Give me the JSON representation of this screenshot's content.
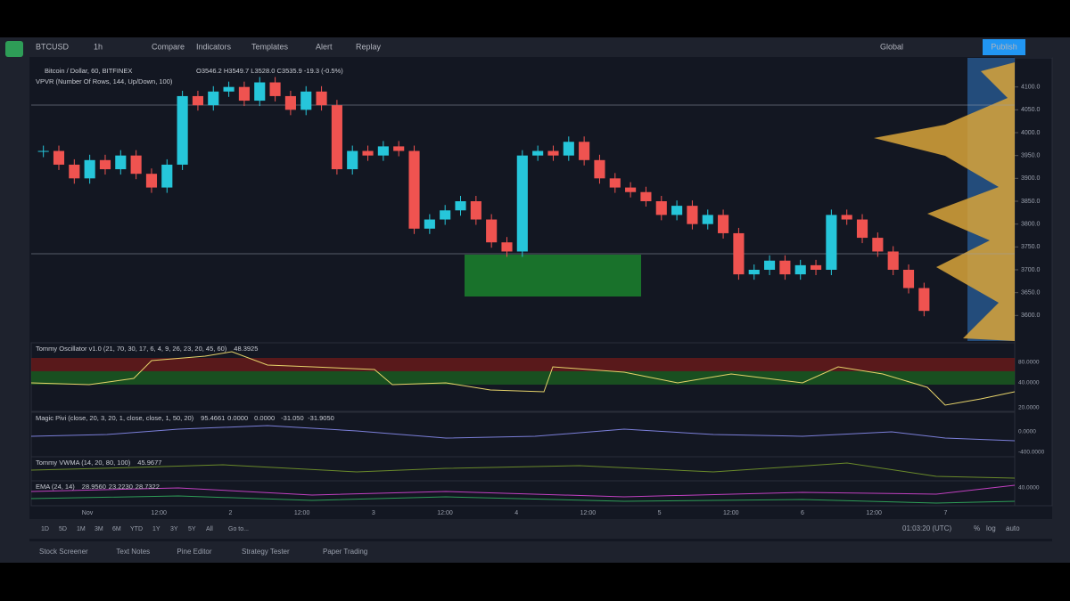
{
  "toolbar": {
    "symbol": "BTCUSD",
    "interval": "1h",
    "items": [
      "Compare",
      "Indicators",
      "Templates",
      "Alert",
      "Replay"
    ],
    "layout": "Global",
    "publish": "Publish"
  },
  "legend": {
    "title": "Bitcoin / Dollar, 60, BITFINEX",
    "ohlc": "O3546.2 H3549.7 L3528.0 C3535.9 -19.3 (-0.5%)",
    "vpvr": "VPVR (Number Of Rows, 144, Up/Down, 100)"
  },
  "price_pane": {
    "ylim": [
      3550,
      4150
    ],
    "yticks": [
      {
        "value": 4100,
        "label": "4100.0"
      },
      {
        "value": 4050,
        "label": "4050.0"
      },
      {
        "value": 4000,
        "label": "4000.0"
      },
      {
        "value": 3950,
        "label": "3950.0"
      },
      {
        "value": 3900,
        "label": "3900.0"
      },
      {
        "value": 3850,
        "label": "3850.0"
      },
      {
        "value": 3800,
        "label": "3800.0"
      },
      {
        "value": 3750,
        "label": "3750.0"
      },
      {
        "value": 3700,
        "label": "3700.0"
      },
      {
        "value": 3650,
        "label": "3650.0"
      },
      {
        "value": 3600,
        "label": "3600.0"
      }
    ],
    "closes": [
      3960,
      3930,
      3900,
      3940,
      3920,
      3950,
      3910,
      3880,
      3930,
      4080,
      4060,
      4090,
      4100,
      4070,
      4110,
      4080,
      4050,
      4090,
      4060,
      3920,
      3960,
      3950,
      3970,
      3960,
      3790,
      3810,
      3830,
      3850,
      3810,
      3760,
      3740,
      3950,
      3960,
      3950,
      3980,
      3940,
      3900,
      3880,
      3870,
      3850,
      3820,
      3840,
      3800,
      3820,
      3780,
      3690,
      3700,
      3720,
      3690,
      3710,
      3700,
      3820,
      3810,
      3770,
      3740,
      3700,
      3660,
      3610
    ]
  },
  "panes": [
    {
      "name": "Tommy Oscillator v1.0 (21, 70, 30, 17, 6, 4, 9, 26, 23, 20, 45, 60)",
      "value": "48.3925",
      "ticks": [
        "80.0000",
        "40.0000",
        "20.0000"
      ]
    },
    {
      "name": "Magic Pivi (close, 20, 3, 20, 1, close, close, 1, 50, 20)",
      "value": "95.4661",
      "extra": [
        "0.0000",
        "0.0000",
        "-31.050",
        "-31.9050"
      ],
      "ticks": [
        "0.0000",
        "-400.0000"
      ]
    },
    {
      "name": "Tommy VWMA (14, 20, 80, 100)",
      "value": "45.9677",
      "ticks": []
    },
    {
      "name": "EMA (24, 14)",
      "value": "28.9560",
      "extra": [
        "23.2230",
        "28.7322"
      ],
      "ticks": [
        "40.0000"
      ]
    }
  ],
  "time_axis": [
    "Nov",
    "12:00",
    "2",
    "12:00",
    "3",
    "12:00",
    "4",
    "12:00",
    "5",
    "12:00",
    "6",
    "12:00",
    "7"
  ],
  "ranges": [
    "1D",
    "5D",
    "1M",
    "3M",
    "6M",
    "YTD",
    "1Y",
    "3Y",
    "5Y",
    "All",
    "Go to..."
  ],
  "status": {
    "clock": "01:03:20 (UTC)",
    "percent": "%",
    "log": "log",
    "auto": "auto"
  },
  "tabs": [
    "Stock Screener",
    "Text Notes",
    "Pine Editor",
    "Strategy Tester",
    "Paper Trading"
  ]
}
